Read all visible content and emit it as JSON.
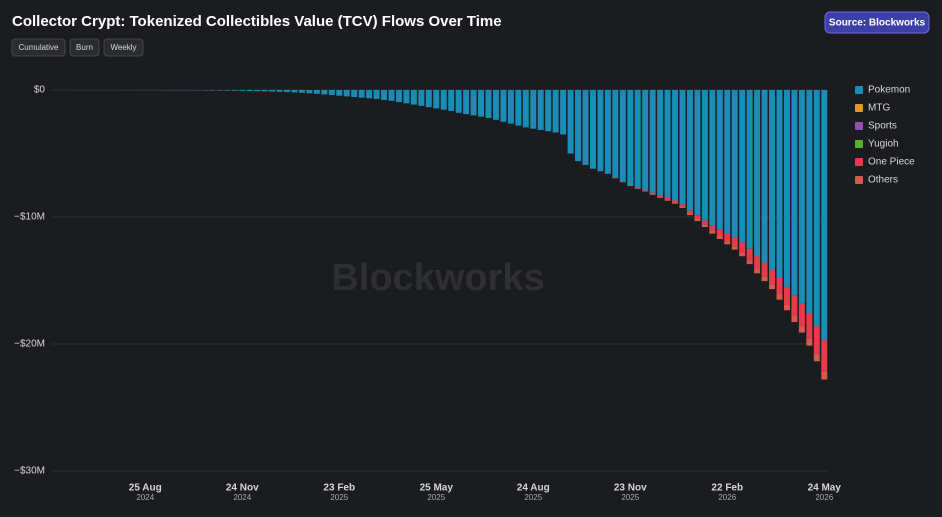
{
  "controls": [
    "Cumulative",
    "Burn",
    "Weekly"
  ],
  "source": "Source: Blockworks",
  "watermark": "Blockworks",
  "chart_data": {
    "type": "bar",
    "stacked": true,
    "title": "Collector Crypt: Tokenized Collectibles Value (TCV) Flows Over Time",
    "legend": "right",
    "grid": true,
    "ylim": [
      -30000000,
      0
    ],
    "yticks": [
      {
        "value": 0,
        "label": "$0"
      },
      {
        "value": -10000000,
        "label": "−$10M"
      },
      {
        "value": -20000000,
        "label": "−$20M"
      },
      {
        "value": -30000000,
        "label": "−$30M"
      }
    ],
    "xticks": [
      {
        "value": "2024-08-25",
        "label": "25 Aug",
        "sublabel": "2024"
      },
      {
        "value": "2024-11-24",
        "label": "24 Nov",
        "sublabel": "2024"
      },
      {
        "value": "2025-02-23",
        "label": "23 Feb",
        "sublabel": "2025"
      },
      {
        "value": "2025-05-25",
        "label": "25 May",
        "sublabel": "2025"
      },
      {
        "value": "2025-08-24",
        "label": "24 Aug",
        "sublabel": "2025"
      },
      {
        "value": "2025-11-23",
        "label": "23 Nov",
        "sublabel": "2025"
      },
      {
        "value": "2026-02-22",
        "label": "22 Feb",
        "sublabel": "2026"
      },
      {
        "value": "2026-05-24",
        "label": "24 May",
        "sublabel": "2026"
      }
    ],
    "x": [
      "2024-06-02",
      "2024-06-09",
      "2024-06-16",
      "2024-06-23",
      "2024-06-30",
      "2024-07-07",
      "2024-07-14",
      "2024-07-21",
      "2024-07-28",
      "2024-08-04",
      "2024-08-11",
      "2024-08-18",
      "2024-08-25",
      "2024-09-01",
      "2024-09-08",
      "2024-09-15",
      "2024-09-22",
      "2024-09-29",
      "2024-10-06",
      "2024-10-13",
      "2024-10-20",
      "2024-10-27",
      "2024-11-03",
      "2024-11-10",
      "2024-11-17",
      "2024-11-24",
      "2024-12-01",
      "2024-12-08",
      "2024-12-15",
      "2024-12-22",
      "2024-12-29",
      "2025-01-05",
      "2025-01-12",
      "2025-01-19",
      "2025-01-26",
      "2025-02-02",
      "2025-02-09",
      "2025-02-16",
      "2025-02-23",
      "2025-03-02",
      "2025-03-09",
      "2025-03-16",
      "2025-03-23",
      "2025-03-30",
      "2025-04-06",
      "2025-04-13",
      "2025-04-20",
      "2025-04-27",
      "2025-05-04",
      "2025-05-11",
      "2025-05-18",
      "2025-05-25",
      "2025-06-01",
      "2025-06-08",
      "2025-06-15",
      "2025-06-22",
      "2025-06-29",
      "2025-07-06",
      "2025-07-13",
      "2025-07-20",
      "2025-07-27",
      "2025-08-03",
      "2025-08-10",
      "2025-08-17",
      "2025-08-24",
      "2025-08-31",
      "2025-09-07",
      "2025-09-14",
      "2025-09-21",
      "2025-09-28",
      "2025-10-05",
      "2025-10-12",
      "2025-10-19",
      "2025-10-26",
      "2025-11-02",
      "2025-11-09",
      "2025-11-16",
      "2025-11-23",
      "2025-11-30",
      "2025-12-07",
      "2025-12-14",
      "2025-12-21",
      "2025-12-28",
      "2026-01-04",
      "2026-01-11",
      "2026-01-18",
      "2026-01-25",
      "2026-02-01",
      "2026-02-08",
      "2026-02-15",
      "2026-02-22",
      "2026-03-01",
      "2026-03-08",
      "2026-03-15",
      "2026-03-22",
      "2026-03-29",
      "2026-04-05",
      "2026-04-12",
      "2026-04-19",
      "2026-04-26",
      "2026-05-03",
      "2026-05-10",
      "2026-05-17",
      "2026-05-24"
    ],
    "series": [
      {
        "name": "Pokemon",
        "color": "#1b8cb6",
        "values": [
          -1000,
          -2000,
          -3000,
          -4000,
          -5000,
          -6000,
          -7000,
          -8000,
          -9000,
          -10000,
          -11000,
          -12000,
          -14000,
          -16000,
          -18000,
          -20000,
          -22000,
          -24000,
          -27000,
          -30000,
          -33000,
          -40000,
          -45000,
          -50000,
          -60000,
          -70000,
          -80000,
          -90000,
          -100000,
          -120000,
          -140000,
          -160000,
          -190000,
          -220000,
          -260000,
          -300000,
          -350000,
          -400000,
          -450000,
          -500000,
          -550000,
          -600000,
          -650000,
          -700000,
          -780000,
          -850000,
          -950000,
          -1050000,
          -1150000,
          -1250000,
          -1350000,
          -1450000,
          -1550000,
          -1650000,
          -1800000,
          -1900000,
          -2000000,
          -2100000,
          -2200000,
          -2350000,
          -2500000,
          -2650000,
          -2800000,
          -2950000,
          -3050000,
          -3150000,
          -3250000,
          -3350000,
          -3500000,
          -5000000,
          -5600000,
          -5900000,
          -6200000,
          -6400000,
          -6600000,
          -6900000,
          -7200000,
          -7500000,
          -7700000,
          -7900000,
          -8100000,
          -8300000,
          -8500000,
          -8700000,
          -9000000,
          -9500000,
          -9900000,
          -10300000,
          -10700000,
          -11000000,
          -11300000,
          -11600000,
          -12000000,
          -12500000,
          -13100000,
          -13600000,
          -14100000,
          -14800000,
          -15500000,
          -16200000,
          -16800000,
          -17600000,
          -18600000,
          -19700000
        ]
      },
      {
        "name": "MTG",
        "color": "#e0962a",
        "values": [
          0,
          0,
          0,
          0,
          0,
          0,
          0,
          0,
          0,
          0,
          0,
          0,
          0,
          0,
          0,
          0,
          0,
          0,
          0,
          0,
          0,
          0,
          0,
          0,
          0,
          0,
          0,
          0,
          0,
          0,
          0,
          0,
          0,
          0,
          0,
          0,
          0,
          0,
          0,
          0,
          0,
          0,
          0,
          0,
          0,
          0,
          0,
          0,
          0,
          0,
          0,
          0,
          0,
          0,
          0,
          0,
          0,
          0,
          0,
          0,
          0,
          0,
          0,
          0,
          0,
          0,
          0,
          0,
          0,
          0,
          0,
          0,
          0,
          0,
          0,
          0,
          0,
          0,
          0,
          0,
          0,
          0,
          0,
          0,
          0,
          0,
          0,
          0,
          0,
          0,
          0,
          0,
          0,
          0,
          0,
          0,
          0,
          0,
          0,
          0,
          0,
          0,
          0,
          0
        ]
      },
      {
        "name": "Sports",
        "color": "#9150b3",
        "values": [
          0,
          0,
          0,
          0,
          0,
          0,
          0,
          0,
          0,
          0,
          0,
          0,
          0,
          0,
          0,
          0,
          0,
          0,
          0,
          0,
          0,
          0,
          0,
          0,
          0,
          0,
          0,
          0,
          0,
          0,
          0,
          0,
          0,
          0,
          0,
          0,
          0,
          0,
          0,
          0,
          0,
          0,
          0,
          0,
          0,
          0,
          0,
          0,
          0,
          0,
          0,
          0,
          0,
          0,
          0,
          0,
          0,
          0,
          0,
          0,
          0,
          0,
          0,
          0,
          0,
          0,
          0,
          0,
          0,
          0,
          0,
          0,
          0,
          0,
          0,
          0,
          0,
          0,
          0,
          0,
          0,
          0,
          0,
          0,
          0,
          0,
          0,
          0,
          0,
          0,
          0,
          0,
          0,
          0,
          0,
          0,
          0,
          0,
          0,
          0,
          0,
          0,
          0,
          0
        ]
      },
      {
        "name": "Yugioh",
        "color": "#5aae2e",
        "values": [
          0,
          0,
          0,
          0,
          0,
          0,
          0,
          0,
          0,
          0,
          0,
          0,
          0,
          0,
          0,
          0,
          0,
          0,
          0,
          0,
          0,
          0,
          0,
          0,
          0,
          0,
          0,
          0,
          0,
          0,
          0,
          0,
          0,
          0,
          0,
          0,
          0,
          0,
          0,
          0,
          0,
          0,
          0,
          0,
          0,
          0,
          0,
          0,
          0,
          0,
          0,
          0,
          0,
          0,
          0,
          0,
          0,
          0,
          0,
          0,
          0,
          0,
          0,
          0,
          0,
          0,
          0,
          0,
          0,
          0,
          0,
          0,
          0,
          0,
          0,
          0,
          0,
          0,
          0,
          0,
          0,
          0,
          0,
          0,
          0,
          0,
          0,
          0,
          0,
          0,
          0,
          0,
          0,
          0,
          0,
          0,
          0,
          0,
          0,
          0,
          0,
          0,
          0,
          0
        ]
      },
      {
        "name": "One Piece",
        "color": "#e8394a",
        "values": [
          0,
          0,
          0,
          0,
          0,
          0,
          0,
          0,
          0,
          0,
          0,
          0,
          0,
          0,
          0,
          0,
          0,
          0,
          0,
          0,
          0,
          0,
          0,
          0,
          0,
          0,
          0,
          0,
          0,
          0,
          0,
          0,
          0,
          0,
          0,
          0,
          0,
          0,
          0,
          0,
          0,
          0,
          0,
          0,
          0,
          0,
          0,
          0,
          0,
          0,
          0,
          0,
          0,
          0,
          0,
          0,
          0,
          0,
          0,
          0,
          0,
          0,
          0,
          0,
          0,
          0,
          0,
          0,
          0,
          0,
          0,
          0,
          0,
          0,
          0,
          0,
          0,
          0,
          0,
          0,
          -50000,
          -80000,
          -100000,
          -120000,
          -150000,
          -200000,
          -250000,
          -300000,
          -400000,
          -500000,
          -600000,
          -700000,
          -800000,
          -900000,
          -1000000,
          -1100000,
          -1200000,
          -1300000,
          -1400000,
          -1600000,
          -1800000,
          -2000000,
          -2200000,
          -2500000
        ]
      },
      {
        "name": "Others",
        "color": "#d45a4c",
        "values": [
          0,
          0,
          0,
          0,
          0,
          0,
          0,
          0,
          0,
          0,
          0,
          0,
          0,
          0,
          0,
          0,
          0,
          0,
          0,
          0,
          0,
          0,
          0,
          0,
          0,
          0,
          0,
          0,
          0,
          0,
          0,
          0,
          0,
          0,
          0,
          0,
          0,
          0,
          0,
          0,
          0,
          0,
          0,
          0,
          0,
          0,
          0,
          0,
          0,
          0,
          0,
          0,
          0,
          0,
          0,
          0,
          0,
          0,
          0,
          0,
          0,
          0,
          0,
          0,
          0,
          0,
          0,
          0,
          0,
          0,
          0,
          0,
          0,
          0,
          0,
          -50000,
          -60000,
          -70000,
          -80000,
          -90000,
          -100000,
          -110000,
          -120000,
          -130000,
          -140000,
          -150000,
          -170000,
          -190000,
          -210000,
          -230000,
          -250000,
          -270000,
          -290000,
          -310000,
          -330000,
          -350000,
          -380000,
          -410000,
          -440000,
          -470000,
          -500000,
          -530000,
          -560000,
          -600000
        ]
      }
    ]
  }
}
